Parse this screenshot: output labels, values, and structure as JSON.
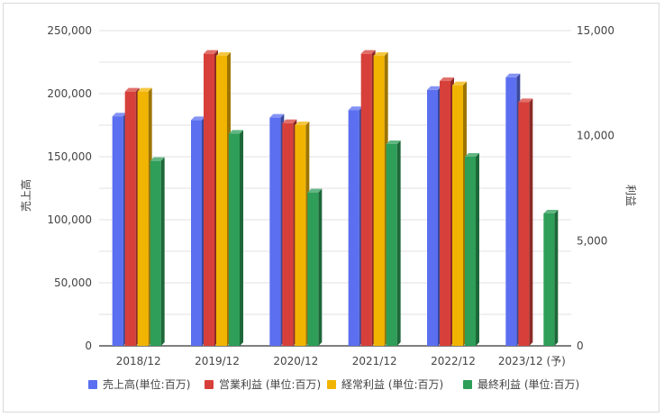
{
  "chart_data": {
    "type": "bar",
    "categories": [
      "2018/12",
      "2019/12",
      "2020/12",
      "2021/12",
      "2022/12",
      "2023/12 (予)"
    ],
    "left_axis": {
      "label": "売上高",
      "ylim": [
        0,
        250000
      ],
      "ticks": [
        "0",
        "50,000",
        "100,000",
        "150,000",
        "200,000",
        "250,000"
      ]
    },
    "right_axis": {
      "label": "利益",
      "ylim": [
        0,
        15000
      ],
      "ticks": [
        "0",
        "5,000",
        "10,000",
        "15,000"
      ]
    },
    "series": [
      {
        "name": "売上高(単位:百万)",
        "axis": "left",
        "color": "#5b6ff0",
        "values": [
          182000,
          179000,
          181000,
          187000,
          203000,
          213000
        ]
      },
      {
        "name": "営業利益 (単位:百万)",
        "axis": "right",
        "color": "#d7403a",
        "values": [
          12100,
          13900,
          10600,
          13900,
          12600,
          11600
        ]
      },
      {
        "name": "経常利益 (単位:百万)",
        "axis": "right",
        "color": "#f1b400",
        "values": [
          12100,
          13800,
          10500,
          13800,
          12400,
          null
        ]
      },
      {
        "name": "最終利益 (単位:百万)",
        "axis": "right",
        "color": "#2e9e58",
        "values": [
          8800,
          10100,
          7300,
          9600,
          9000,
          6300
        ]
      }
    ],
    "grid": true,
    "legend_position": "bottom"
  }
}
